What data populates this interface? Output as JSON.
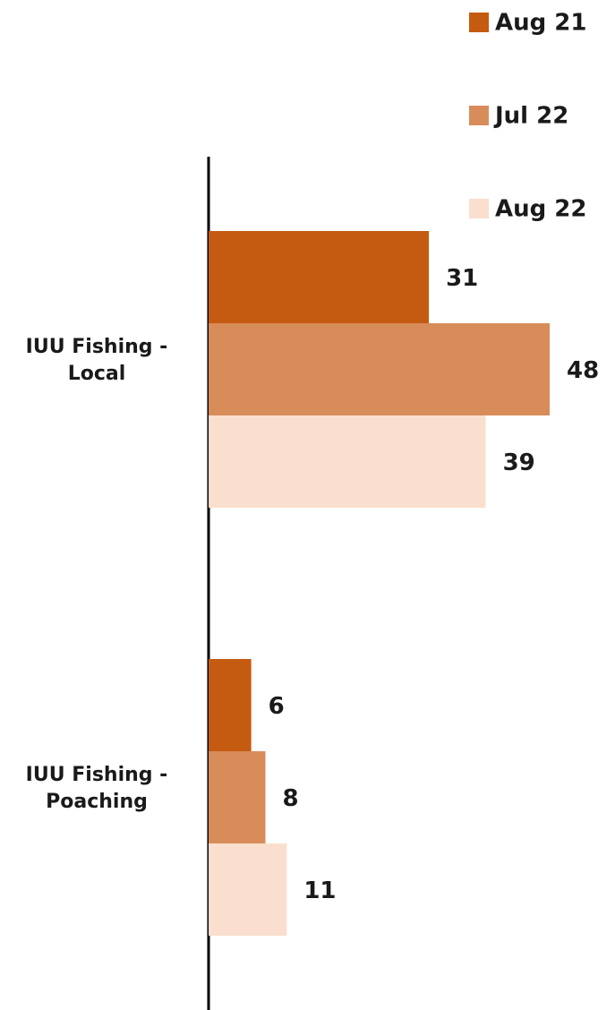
{
  "chart_data": {
    "type": "bar",
    "orientation": "horizontal",
    "categories": [
      "IUU Fishing - Local",
      "IUU Fishing - Poaching"
    ],
    "series": [
      {
        "name": "Aug 21",
        "color": "#c55a11",
        "values": [
          31,
          6
        ]
      },
      {
        "name": "Jul 22",
        "color": "#d88c5a",
        "values": [
          48,
          8
        ]
      },
      {
        "name": "Aug 22",
        "color": "#fadfce",
        "values": [
          39,
          11
        ]
      }
    ]
  }
}
